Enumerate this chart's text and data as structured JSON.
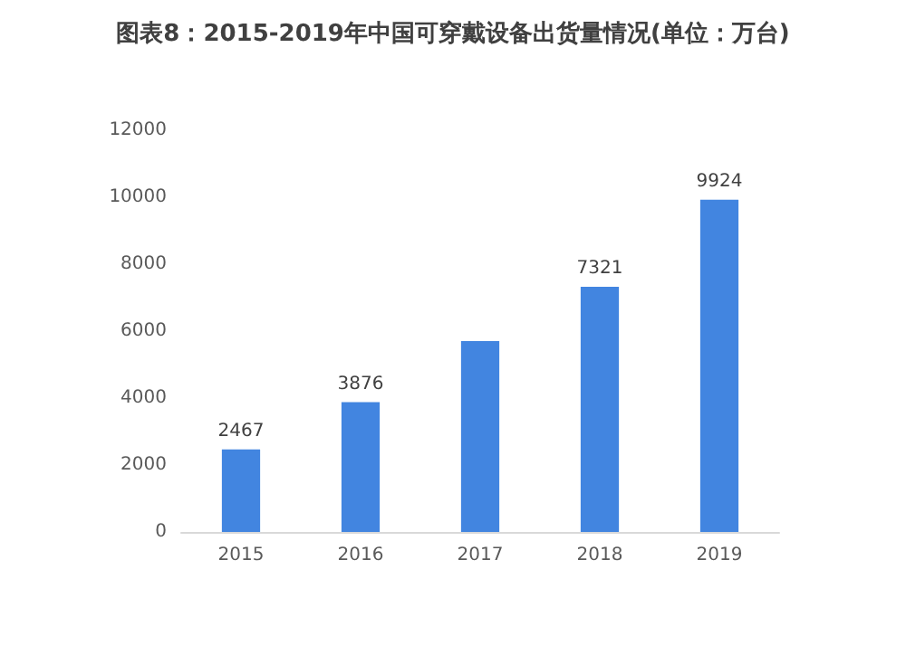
{
  "chart_data": {
    "type": "bar",
    "title": "图表8：2015-2019年中国可穿戴设备出货量情况(单位：万台)",
    "categories": [
      "2015",
      "2016",
      "2017",
      "2018",
      "2019"
    ],
    "values": [
      2467,
      3876,
      5700,
      7321,
      9924
    ],
    "value_labels": [
      "2467",
      "3876",
      null,
      "7321",
      "9924"
    ],
    "color": "#4285e0",
    "ylim": [
      0,
      12000
    ],
    "yticks": [
      0,
      2000,
      4000,
      6000,
      8000,
      10000,
      12000
    ],
    "grid": false
  }
}
